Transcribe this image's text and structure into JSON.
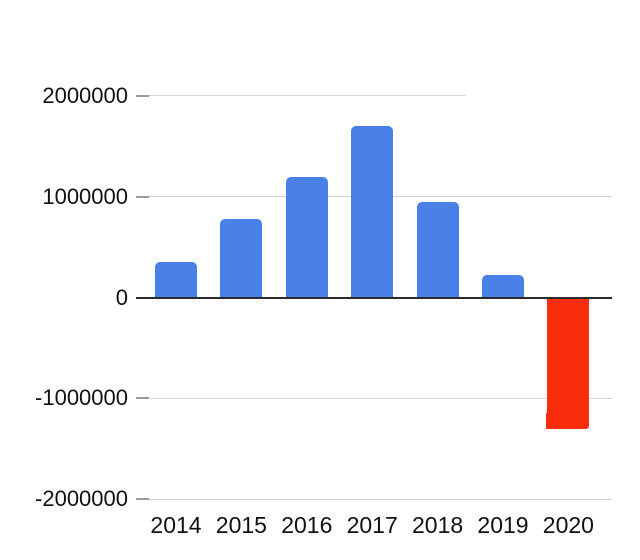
{
  "chart_data": {
    "type": "bar",
    "title": "",
    "xlabel": "",
    "ylabel": "",
    "categories": [
      "2014",
      "2015",
      "2016",
      "2017",
      "2018",
      "2019",
      "2020"
    ],
    "values": [
      350000,
      780000,
      1200000,
      1700000,
      950000,
      220000,
      -1300000
    ],
    "bar_colors": [
      "#4a81e8",
      "#4a81e8",
      "#4a81e8",
      "#4a81e8",
      "#4a81e8",
      "#4a81e8",
      "#fa2d0d"
    ],
    "ylim": [
      -2000000,
      2000000
    ],
    "y_ticks": [
      {
        "label": "2000000",
        "value": 2000000
      },
      {
        "label": "1000000",
        "value": 1000000
      },
      {
        "label": "0",
        "value": 0
      },
      {
        "label": "-1000000",
        "value": -1000000
      },
      {
        "label": "-2000000",
        "value": -2000000
      }
    ],
    "grid": true,
    "legend": "none",
    "layout_hints": {
      "orientation": "vertical",
      "baseline": "zero-axis drawn dark across plot",
      "top_gridline_truncated": true
    }
  },
  "colors": {
    "positive_bar": "#4a81e8",
    "negative_bar": "#fa2d0d",
    "gridline": "#d4d4d4",
    "tick": "#9a9a9a",
    "axis_line": "#2b2b2b",
    "label_text": "#111111",
    "background": "#ffffff",
    "artifact_blue": "#5d80d8"
  }
}
